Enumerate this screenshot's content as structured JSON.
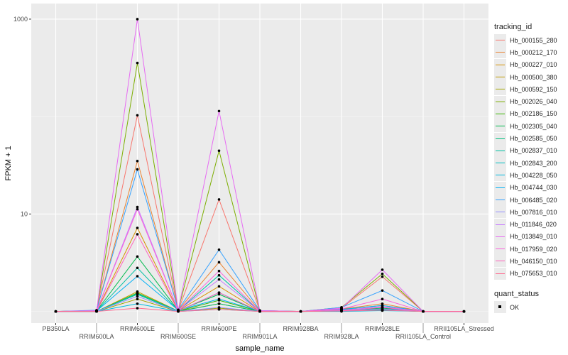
{
  "chart_data": {
    "type": "line",
    "xlabel": "sample_name",
    "ylabel": "FPKM + 1",
    "y_scale": "log10",
    "ylim": [
      0.76,
      1445
    ],
    "yticks": [
      10,
      1000
    ],
    "ytick_labels": [
      "10",
      "1000"
    ],
    "grid": true,
    "legend_position": "right",
    "categories": [
      "PB350LA",
      "RRIM600LA",
      "RRIM600LE",
      "RRIM600SE",
      "RRIM600PE",
      "RRIM901LA",
      "RRIM928BA",
      "RRIM928LA",
      "RRIM928LE",
      "RRII105LA_Control",
      "RRII105LA_Stressed"
    ],
    "legend_title": "tracking_id",
    "series": [
      {
        "name": "Hb_000155_280",
        "color": "#F8766D",
        "values": [
          1,
          1.02,
          103,
          1.02,
          14.1,
          1.02,
          1,
          1.08,
          2.27,
          1,
          1
        ]
      },
      {
        "name": "Hb_000212_170",
        "color": "#EA8331",
        "values": [
          1,
          1.02,
          35,
          1.03,
          3.2,
          1.01,
          1,
          1.06,
          1.2,
          1,
          1
        ]
      },
      {
        "name": "Hb_000227_010",
        "color": "#D89000",
        "values": [
          1,
          1.01,
          7.2,
          1.02,
          1.81,
          1,
          1,
          1.05,
          1.15,
          1,
          1
        ]
      },
      {
        "name": "Hb_000500_380",
        "color": "#C09B00",
        "values": [
          1,
          1,
          1.6,
          1.01,
          1.2,
          1,
          1,
          1.02,
          1.05,
          1,
          1
        ]
      },
      {
        "name": "Hb_000592_150",
        "color": "#A3A500",
        "values": [
          1,
          1,
          1.34,
          1,
          1.08,
          1,
          1,
          1.01,
          1.03,
          1,
          1
        ]
      },
      {
        "name": "Hb_002026_040",
        "color": "#7CAE00",
        "values": [
          1,
          1.02,
          355,
          1.03,
          44.6,
          1.02,
          1,
          1.1,
          2.43,
          1,
          1
        ]
      },
      {
        "name": "Hb_002186_150",
        "color": "#39B600",
        "values": [
          1,
          1,
          1.55,
          1.01,
          1.3,
          1,
          1,
          1.03,
          1.1,
          1,
          1
        ]
      },
      {
        "name": "Hb_002305_040",
        "color": "#00BB4E",
        "values": [
          1,
          1.01,
          3.66,
          1.02,
          1.5,
          1,
          1,
          1.02,
          1.08,
          1,
          1
        ]
      },
      {
        "name": "Hb_002585_050",
        "color": "#00BF7D",
        "values": [
          1,
          1,
          1.5,
          1,
          1.2,
          1,
          1,
          1.01,
          1.04,
          1,
          1
        ]
      },
      {
        "name": "Hb_002837_010",
        "color": "#00C1A3",
        "values": [
          1,
          1.01,
          2.8,
          1.02,
          2.35,
          1,
          1,
          1.04,
          1.1,
          1,
          1
        ]
      },
      {
        "name": "Hb_002843_200",
        "color": "#00BFC4",
        "values": [
          1,
          1,
          1.52,
          1.01,
          1.56,
          1,
          1,
          1.02,
          1.06,
          1,
          1
        ]
      },
      {
        "name": "Hb_004228_050",
        "color": "#00BAE0",
        "values": [
          1,
          1,
          1.2,
          1,
          1.05,
          1,
          1,
          1,
          1.02,
          1,
          1
        ]
      },
      {
        "name": "Hb_004744_030",
        "color": "#00B0F6",
        "values": [
          1,
          1.01,
          2.3,
          1.03,
          1.34,
          1.01,
          1,
          1.05,
          1.15,
          1,
          1
        ]
      },
      {
        "name": "Hb_006485_020",
        "color": "#35A2FF",
        "values": [
          1,
          1.03,
          28.7,
          1.04,
          4.3,
          1.02,
          1,
          1.1,
          1.64,
          1,
          1
        ]
      },
      {
        "name": "Hb_007816_010",
        "color": "#9590FF",
        "values": [
          1,
          1,
          1.43,
          1,
          1.1,
          1,
          1,
          1.02,
          1.06,
          1,
          1
        ]
      },
      {
        "name": "Hb_011846_020",
        "color": "#C77CFF",
        "values": [
          1,
          1.01,
          11.8,
          1.02,
          2.13,
          1,
          1,
          1.03,
          1.12,
          1,
          1
        ]
      },
      {
        "name": "Hb_013849_010",
        "color": "#E76BF3",
        "values": [
          1,
          1.02,
          1000,
          1.03,
          114,
          1.02,
          1,
          1.08,
          2.68,
          1,
          1
        ]
      },
      {
        "name": "Hb_017959_020",
        "color": "#FA62DB",
        "values": [
          1,
          1.01,
          11.2,
          1.02,
          2.6,
          1,
          1,
          1.06,
          1.34,
          1,
          1
        ]
      },
      {
        "name": "Hb_046150_010",
        "color": "#FF62BC",
        "values": [
          1,
          1,
          6.2,
          1.01,
          1.56,
          1,
          1,
          1.02,
          1.1,
          1,
          1
        ]
      },
      {
        "name": "Hb_075653_010",
        "color": "#FF6C91",
        "values": [
          1,
          1,
          1.08,
          1,
          1.05,
          1,
          1,
          1.01,
          1.03,
          1,
          1
        ]
      }
    ],
    "shape_legend_title": "quant_status",
    "shape_legend_items": [
      "OK"
    ]
  }
}
